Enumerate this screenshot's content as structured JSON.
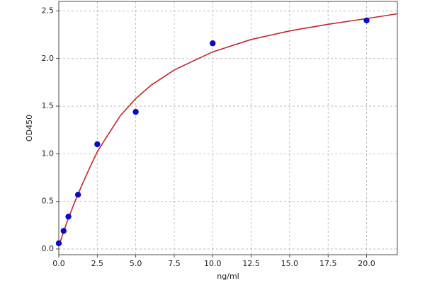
{
  "chart_data": {
    "type": "scatter",
    "xlabel": "ng/ml",
    "ylabel": "OD450",
    "xlim": [
      0,
      22
    ],
    "ylim": [
      -0.06,
      2.6
    ],
    "xticks": [
      {
        "value": 0,
        "label": "0.0"
      },
      2.5,
      {
        "value": 5,
        "label": "5.0"
      },
      7.5,
      {
        "value": 10,
        "label": "10.0"
      },
      12.5,
      {
        "value": 15,
        "label": "15.0"
      },
      17.5,
      {
        "value": 20,
        "label": "20.0"
      }
    ],
    "yticks": [
      {
        "value": 0,
        "label": "0.0"
      },
      0.5,
      {
        "value": 1,
        "label": "1.0"
      },
      1.5,
      {
        "value": 2,
        "label": "2.0"
      },
      2.5
    ],
    "grid": true,
    "series": [
      {
        "style": "line",
        "color": "#c1272d",
        "x": [
          0,
          0.5,
          1,
          1.5,
          2,
          2.5,
          3,
          4,
          5,
          6,
          7.5,
          10,
          12.5,
          15,
          17.5,
          20,
          22
        ],
        "values": [
          0.03,
          0.27,
          0.48,
          0.67,
          0.85,
          1.02,
          1.15,
          1.4,
          1.58,
          1.72,
          1.88,
          2.07,
          2.2,
          2.29,
          2.36,
          2.42,
          2.47
        ]
      },
      {
        "style": "markers",
        "color": "#0a0ac8",
        "x": [
          0,
          0.3125,
          0.625,
          1.25,
          2.5,
          5,
          10,
          20
        ],
        "values": [
          0.06,
          0.19,
          0.34,
          0.57,
          1.1,
          1.44,
          2.16,
          2.4
        ]
      }
    ]
  }
}
